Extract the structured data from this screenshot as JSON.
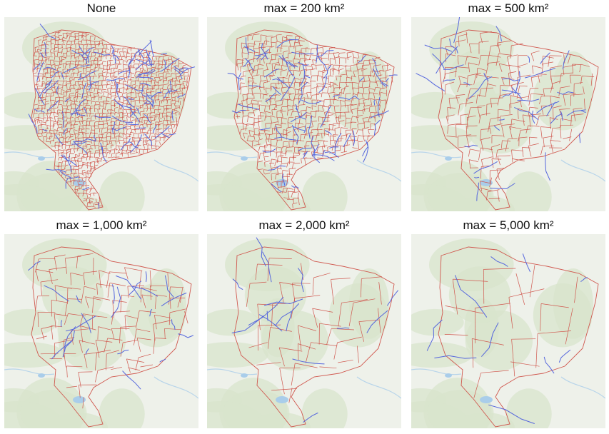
{
  "panels": [
    {
      "title": "None",
      "density": 46,
      "rivers": 120
    },
    {
      "title": "max = 200 km²",
      "density": 32,
      "rivers": 80
    },
    {
      "title": "max = 500 km²",
      "density": 18,
      "rivers": 40
    },
    {
      "title": "max = 1,000 km²",
      "density": 13,
      "rivers": 24
    },
    {
      "title": "max = 2,000 km²",
      "density": 9,
      "rivers": 16
    },
    {
      "title": "max = 5,000 km²",
      "density": 6,
      "rivers": 10
    }
  ],
  "colors": {
    "basemap": "#eef1ea",
    "forest": "#d8e4cc",
    "water": "#a9cdea",
    "boundary": "#d0584f",
    "river": "#5566dd"
  }
}
